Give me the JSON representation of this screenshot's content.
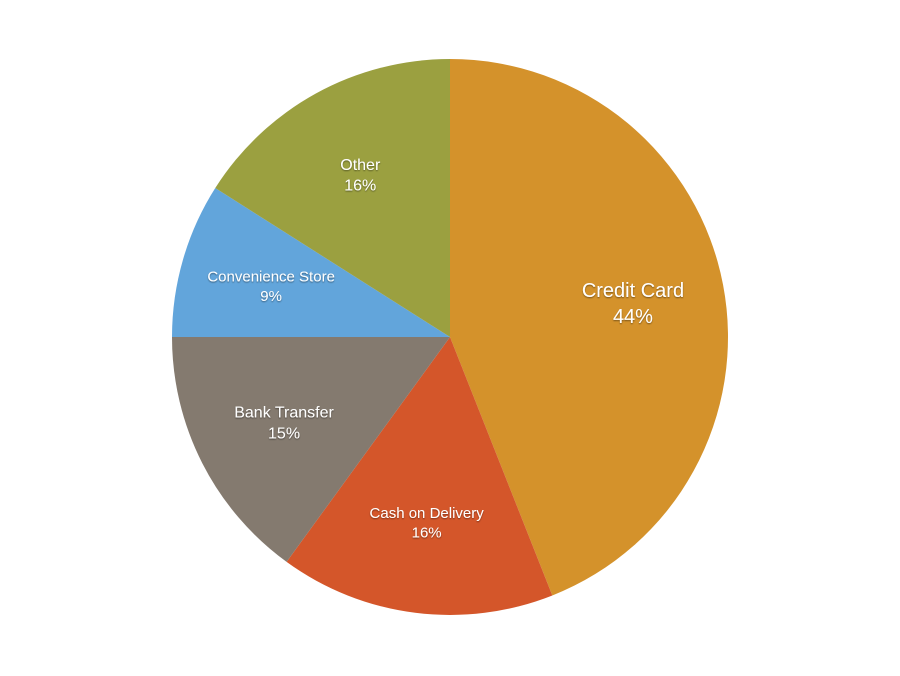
{
  "chart_data": {
    "type": "pie",
    "title": "",
    "start": "top",
    "direction": "clockwise",
    "slices": [
      {
        "label": "Credit Card",
        "value": 44,
        "value_label": "44%",
        "color": "#D4922B"
      },
      {
        "label": "Cash on Delivery",
        "value": 16,
        "value_label": "16%",
        "color": "#D4562A"
      },
      {
        "label": "Bank Transfer",
        "value": 15,
        "value_label": "15%",
        "color": "#847A6F"
      },
      {
        "label": "Convenience Store",
        "value": 9,
        "value_label": "9%",
        "color": "#62A5DB"
      },
      {
        "label": "Other",
        "value": 16,
        "value_label": "16%",
        "color": "#9BA040"
      }
    ]
  }
}
